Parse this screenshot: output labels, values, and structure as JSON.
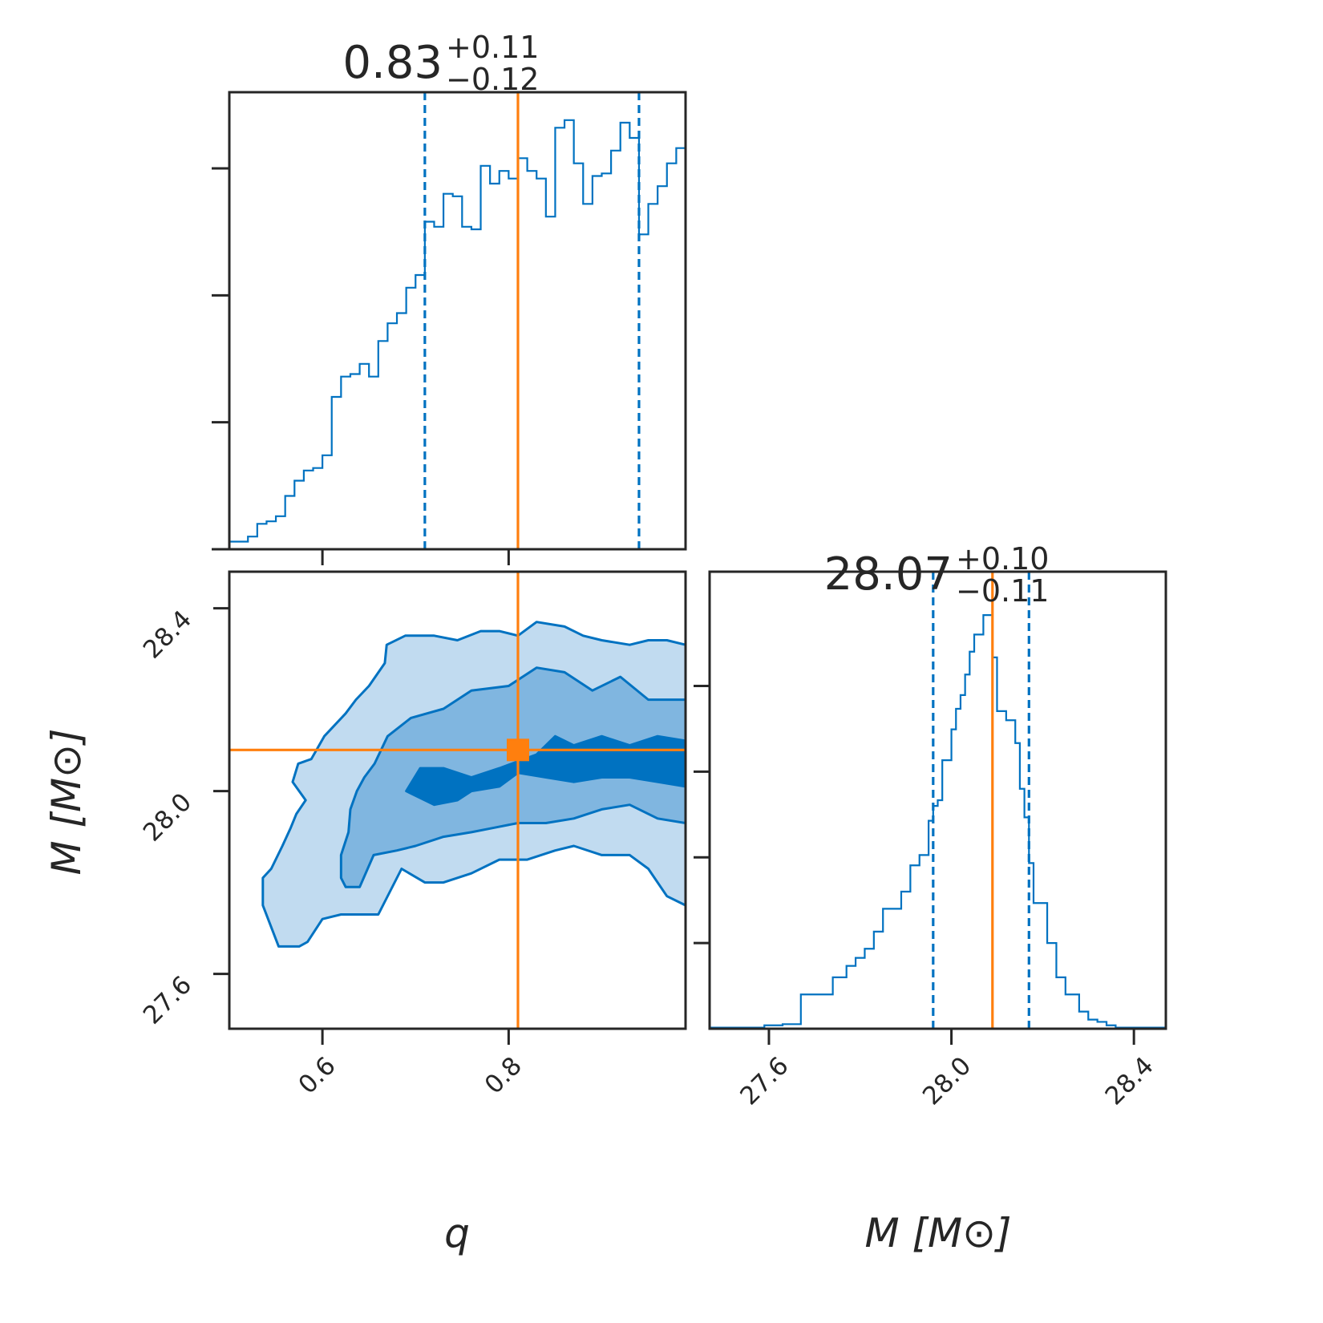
{
  "colors": {
    "posterior": "#0072c1",
    "truth": "#ff7f0e",
    "level_1": "#c1dbf0",
    "level_2": "#80b6e0",
    "level_3": "#0072c1",
    "frame": "#262626"
  },
  "chart_data": [
    {
      "panel": "q-marginal",
      "type": "histogram",
      "title": {
        "value": "0.83",
        "plus": "+0.11",
        "minus": "−0.12"
      },
      "xlim": [
        0.5,
        0.99
      ],
      "median": 0.83,
      "quantiles": [
        0.71,
        0.94
      ],
      "truth": 0.81,
      "bin_edges": [
        0.5,
        0.51,
        0.52,
        0.53,
        0.54,
        0.55,
        0.56,
        0.57,
        0.58,
        0.59,
        0.6,
        0.61,
        0.62,
        0.63,
        0.64,
        0.65,
        0.66,
        0.67,
        0.68,
        0.69,
        0.7,
        0.71,
        0.72,
        0.73,
        0.74,
        0.75,
        0.76,
        0.77,
        0.78,
        0.79,
        0.8,
        0.81,
        0.82,
        0.83,
        0.84,
        0.85,
        0.86,
        0.87,
        0.88,
        0.89,
        0.9,
        0.91,
        0.92,
        0.93,
        0.94,
        0.95,
        0.96,
        0.97,
        0.98,
        0.99
      ],
      "counts": [
        0.03,
        0.03,
        0.05,
        0.1,
        0.11,
        0.13,
        0.21,
        0.27,
        0.31,
        0.32,
        0.37,
        0.6,
        0.68,
        0.69,
        0.73,
        0.68,
        0.82,
        0.89,
        0.93,
        1.03,
        1.08,
        1.29,
        1.27,
        1.4,
        1.39,
        1.27,
        1.26,
        1.51,
        1.44,
        1.49,
        1.46,
        1.54,
        1.49,
        1.46,
        1.31,
        1.66,
        1.69,
        1.52,
        1.36,
        1.47,
        1.48,
        1.57,
        1.68,
        1.62,
        1.24,
        1.36,
        1.43,
        1.52,
        1.58
      ],
      "yticks": [
        0.5,
        1.0,
        1.5
      ]
    },
    {
      "panel": "q-M-2d",
      "type": "contour",
      "xlabel": "q",
      "ylabel": "M [M⊙]",
      "xlim": [
        0.5,
        0.99
      ],
      "ylim": [
        27.48,
        28.48
      ],
      "xticks": [
        0.6,
        0.8
      ],
      "yticks": [
        27.6,
        28.0,
        28.4
      ],
      "truth": {
        "x": 0.81,
        "y": 28.09
      },
      "levels": [
        {
          "level": 1,
          "path": [
            [
              0.536,
              27.75
            ],
            [
              0.536,
              27.81
            ],
            [
              0.545,
              27.83
            ],
            [
              0.557,
              27.88
            ],
            [
              0.566,
              27.92
            ],
            [
              0.572,
              27.95
            ],
            [
              0.582,
              27.98
            ],
            [
              0.568,
              28.02
            ],
            [
              0.574,
              28.06
            ],
            [
              0.588,
              28.07
            ],
            [
              0.602,
              28.12
            ],
            [
              0.625,
              28.17
            ],
            [
              0.636,
              28.2
            ],
            [
              0.65,
              28.23
            ],
            [
              0.667,
              28.28
            ],
            [
              0.669,
              28.32
            ],
            [
              0.689,
              28.34
            ],
            [
              0.72,
              28.34
            ],
            [
              0.745,
              28.33
            ],
            [
              0.77,
              28.35
            ],
            [
              0.79,
              28.35
            ],
            [
              0.81,
              28.34
            ],
            [
              0.83,
              28.37
            ],
            [
              0.86,
              28.36
            ],
            [
              0.88,
              28.34
            ],
            [
              0.9,
              28.33
            ],
            [
              0.93,
              28.32
            ],
            [
              0.95,
              28.33
            ],
            [
              0.97,
              28.33
            ],
            [
              0.99,
              28.32
            ],
            [
              0.99,
              27.75
            ],
            [
              0.97,
              27.77
            ],
            [
              0.95,
              27.83
            ],
            [
              0.93,
              27.86
            ],
            [
              0.9,
              27.86
            ],
            [
              0.87,
              27.88
            ],
            [
              0.85,
              27.87
            ],
            [
              0.82,
              27.85
            ],
            [
              0.79,
              27.85
            ],
            [
              0.76,
              27.82
            ],
            [
              0.73,
              27.8
            ],
            [
              0.71,
              27.8
            ],
            [
              0.685,
              27.83
            ],
            [
              0.66,
              27.73
            ],
            [
              0.645,
              27.73
            ],
            [
              0.62,
              27.73
            ],
            [
              0.6,
              27.72
            ],
            [
              0.584,
              27.67
            ],
            [
              0.575,
              27.66
            ],
            [
              0.553,
              27.66
            ],
            [
              0.536,
              27.75
            ]
          ]
        },
        {
          "level": 2,
          "path": [
            [
              0.62,
              27.81
            ],
            [
              0.62,
              27.86
            ],
            [
              0.628,
              27.91
            ],
            [
              0.63,
              27.96
            ],
            [
              0.637,
              28.0
            ],
            [
              0.645,
              28.03
            ],
            [
              0.656,
              28.06
            ],
            [
              0.67,
              28.12
            ],
            [
              0.695,
              28.16
            ],
            [
              0.73,
              28.18
            ],
            [
              0.76,
              28.22
            ],
            [
              0.8,
              28.23
            ],
            [
              0.83,
              28.27
            ],
            [
              0.86,
              28.26
            ],
            [
              0.89,
              28.22
            ],
            [
              0.92,
              28.25
            ],
            [
              0.95,
              28.2
            ],
            [
              0.99,
              28.2
            ],
            [
              0.99,
              27.93
            ],
            [
              0.96,
              27.94
            ],
            [
              0.93,
              27.97
            ],
            [
              0.9,
              27.96
            ],
            [
              0.87,
              27.94
            ],
            [
              0.84,
              27.93
            ],
            [
              0.81,
              27.93
            ],
            [
              0.785,
              27.92
            ],
            [
              0.76,
              27.91
            ],
            [
              0.73,
              27.9
            ],
            [
              0.7,
              27.88
            ],
            [
              0.68,
              27.87
            ],
            [
              0.655,
              27.86
            ],
            [
              0.64,
              27.79
            ],
            [
              0.625,
              27.79
            ],
            [
              0.62,
              27.81
            ]
          ]
        },
        {
          "level": 3,
          "path": [
            [
              0.69,
              28.0
            ],
            [
              0.705,
              28.05
            ],
            [
              0.73,
              28.05
            ],
            [
              0.76,
              28.03
            ],
            [
              0.79,
              28.05
            ],
            [
              0.83,
              28.08
            ],
            [
              0.85,
              28.12
            ],
            [
              0.87,
              28.1
            ],
            [
              0.9,
              28.12
            ],
            [
              0.93,
              28.1
            ],
            [
              0.96,
              28.12
            ],
            [
              0.99,
              28.11
            ],
            [
              0.99,
              28.01
            ],
            [
              0.96,
              28.02
            ],
            [
              0.93,
              28.03
            ],
            [
              0.9,
              28.03
            ],
            [
              0.87,
              28.02
            ],
            [
              0.84,
              28.03
            ],
            [
              0.81,
              28.04
            ],
            [
              0.79,
              28.01
            ],
            [
              0.76,
              28.0
            ],
            [
              0.745,
              27.98
            ],
            [
              0.72,
              27.97
            ],
            [
              0.69,
              28.0
            ]
          ]
        }
      ]
    },
    {
      "panel": "M-marginal",
      "type": "histogram",
      "title": {
        "value": "28.07",
        "plus": "+0.10",
        "minus": "−0.11"
      },
      "xlabel": "M [M⊙]",
      "xlim": [
        27.47,
        28.47
      ],
      "xticks": [
        27.6,
        28.0,
        28.4
      ],
      "median": 28.07,
      "quantiles": [
        27.96,
        28.17
      ],
      "truth": 28.09,
      "bin_edges": [
        27.47,
        27.59,
        27.63,
        27.67,
        27.74,
        27.77,
        27.79,
        27.81,
        27.83,
        27.85,
        27.87,
        27.89,
        27.91,
        27.93,
        27.95,
        27.96,
        27.97,
        27.98,
        28.0,
        28.01,
        28.02,
        28.03,
        28.04,
        28.05,
        28.07,
        28.09,
        28.1,
        28.12,
        28.14,
        28.15,
        28.16,
        28.17,
        28.18,
        28.21,
        28.23,
        28.25,
        28.28,
        28.3,
        28.32,
        28.34,
        28.36,
        28.38,
        28.47
      ],
      "counts": [
        0.01,
        0.03,
        0.04,
        0.3,
        0.45,
        0.55,
        0.62,
        0.7,
        0.85,
        1.05,
        1.05,
        1.2,
        1.43,
        1.52,
        1.82,
        1.95,
        2.0,
        2.35,
        2.62,
        2.8,
        2.92,
        3.1,
        3.3,
        3.45,
        3.62,
        3.25,
        2.78,
        2.7,
        2.5,
        2.1,
        1.85,
        1.45,
        1.1,
        0.75,
        0.45,
        0.3,
        0.15,
        0.08,
        0.06,
        0.03,
        0.01,
        0.01
      ],
      "yticks": [
        0.75,
        1.5,
        2.25,
        3.0
      ]
    }
  ]
}
